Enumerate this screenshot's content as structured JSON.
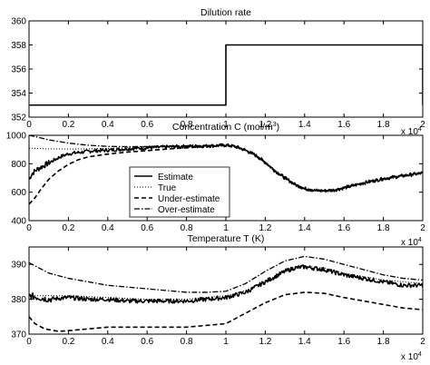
{
  "chart_data": [
    {
      "type": "line",
      "title": "Dilution rate",
      "xlim": [
        0,
        20000
      ],
      "ylim": [
        352,
        360
      ],
      "xticks": [
        0,
        2000,
        4000,
        6000,
        8000,
        10000,
        12000,
        14000,
        16000,
        18000,
        20000
      ],
      "xticklabels": [
        "0",
        "0.2",
        "0.4",
        "0.6",
        "0.8",
        "1",
        "1.2",
        "1.4",
        "1.6",
        "1.8",
        "2"
      ],
      "yticks": [
        352,
        354,
        356,
        358,
        360
      ],
      "yticklabels": [
        "352",
        "354",
        "356",
        "358",
        "360"
      ],
      "x_multiplier": "x 10",
      "x_multiplier_exp": "4",
      "grid": false,
      "series": [
        {
          "style": "solid",
          "x": [
            0,
            10000,
            10000,
            20000,
            20000
          ],
          "y": [
            353,
            353,
            358,
            358,
            353
          ]
        }
      ]
    },
    {
      "type": "line",
      "title": "Concentration C (mol/m",
      "title_sup": "3",
      "title_end": ")",
      "xlim": [
        0,
        20000
      ],
      "ylim": [
        400,
        1000
      ],
      "xticks": [
        0,
        2000,
        4000,
        6000,
        8000,
        10000,
        12000,
        14000,
        16000,
        18000,
        20000
      ],
      "xticklabels": [
        "0",
        "0.2",
        "0.4",
        "0.6",
        "0.8",
        "1",
        "1.2",
        "1.4",
        "1.6",
        "1.8",
        "2"
      ],
      "yticks": [
        400,
        600,
        800,
        1000
      ],
      "yticklabels": [
        "400",
        "600",
        "800",
        "1000"
      ],
      "x_multiplier": "x 10",
      "x_multiplier_exp": "4",
      "grid": false,
      "legend_position": "center-left",
      "series": [
        {
          "name": "Estimate",
          "style": "solid",
          "noise": 12,
          "x": [
            0,
            150,
            400,
            800,
            1200,
            1600,
            2000,
            2600,
            3200,
            4000,
            5000,
            6000,
            7000,
            8000,
            9000,
            10000,
            10500,
            11000,
            11500,
            12000,
            12500,
            13000,
            13500,
            14000,
            14500,
            15000,
            15500,
            16000,
            17000,
            18000,
            19000,
            20000
          ],
          "y": [
            690,
            730,
            760,
            790,
            820,
            850,
            870,
            880,
            890,
            895,
            905,
            912,
            918,
            922,
            925,
            930,
            920,
            895,
            860,
            810,
            750,
            700,
            655,
            625,
            612,
            610,
            615,
            630,
            665,
            695,
            715,
            735
          ]
        },
        {
          "name": "True",
          "style": "dotted",
          "noise": 0,
          "x": [
            0,
            1000,
            2000,
            3000,
            4000,
            5000,
            6000,
            7000,
            8000,
            9000,
            10000,
            10500,
            11000,
            11500,
            12000,
            12500,
            13000,
            13500,
            14000,
            14500,
            15000,
            15500,
            16000,
            17000,
            18000,
            19000,
            20000
          ],
          "y": [
            910,
            905,
            903,
            905,
            908,
            912,
            916,
            920,
            923,
            926,
            930,
            920,
            895,
            860,
            810,
            750,
            700,
            655,
            625,
            612,
            610,
            615,
            630,
            665,
            695,
            715,
            735
          ]
        },
        {
          "name": "Under-estimate",
          "style": "dashed",
          "noise": 0,
          "x": [
            0,
            300,
            600,
            1000,
            1500,
            2000,
            2500,
            3000,
            4000,
            5000,
            6000,
            7000,
            8000,
            9000,
            10000,
            10500,
            11000,
            11500,
            12000,
            12500,
            13000,
            13500,
            14000,
            14500,
            15000,
            15500,
            16000,
            17000,
            18000,
            19000,
            20000
          ],
          "y": [
            515,
            560,
            620,
            690,
            750,
            795,
            828,
            848,
            868,
            882,
            892,
            903,
            912,
            920,
            928,
            918,
            893,
            858,
            808,
            748,
            698,
            653,
            623,
            610,
            608,
            613,
            628,
            663,
            693,
            713,
            733
          ]
        },
        {
          "name": "Over-estimate",
          "style": "dashdot",
          "noise": 0,
          "x": [
            0,
            500,
            1000,
            2000,
            3000,
            4000,
            5000,
            6000,
            7000,
            8000,
            9000,
            10000,
            10500,
            11000,
            11500,
            12000,
            12500,
            13000,
            13500,
            14000,
            14500,
            15000,
            15500,
            16000,
            17000,
            18000,
            19000,
            20000
          ],
          "y": [
            1000,
            985,
            968,
            945,
            930,
            922,
            920,
            921,
            923,
            926,
            928,
            932,
            922,
            897,
            862,
            812,
            752,
            702,
            657,
            627,
            614,
            612,
            617,
            632,
            667,
            697,
            717,
            737
          ]
        }
      ]
    },
    {
      "type": "line",
      "title": "Temperature T (K)",
      "xlim": [
        0,
        20000
      ],
      "ylim": [
        370,
        395
      ],
      "xticks": [
        0,
        2000,
        4000,
        6000,
        8000,
        10000,
        12000,
        14000,
        16000,
        18000,
        20000
      ],
      "xticklabels": [
        "0",
        "0.2",
        "0.4",
        "0.6",
        "0.8",
        "1",
        "1.2",
        "1.4",
        "1.6",
        "1.8",
        "2"
      ],
      "yticks": [
        370,
        380,
        390
      ],
      "yticklabels": [
        "370",
        "380",
        "390"
      ],
      "x_multiplier": "x 10",
      "x_multiplier_exp": "4",
      "grid": false,
      "series": [
        {
          "name": "Estimate",
          "style": "solid",
          "noise": 0.6,
          "x": [
            0,
            1000,
            2000,
            3000,
            4000,
            5000,
            6000,
            7000,
            8000,
            9000,
            10000,
            11000,
            12000,
            13000,
            13500,
            14000,
            15000,
            16000,
            17000,
            18000,
            19000,
            20000
          ],
          "y": [
            381,
            380,
            380.5,
            380,
            380,
            379.5,
            379.5,
            379.5,
            379.5,
            380,
            380.5,
            382,
            385,
            388,
            389,
            389.3,
            388.5,
            387,
            386,
            385,
            384,
            384
          ]
        },
        {
          "name": "True",
          "style": "dotted",
          "noise": 0,
          "x": [
            0,
            2000,
            4000,
            6000,
            8000,
            10000,
            11000,
            12000,
            13000,
            14000,
            15000,
            16000,
            17000,
            18000,
            19000,
            20000
          ],
          "y": [
            381,
            381,
            380.5,
            380,
            380,
            381,
            382.5,
            385,
            388,
            389.5,
            389,
            387.5,
            386.5,
            385.5,
            385,
            384.5
          ]
        },
        {
          "name": "Under-estimate",
          "style": "dashed",
          "noise": 0,
          "x": [
            0,
            300,
            800,
            1500,
            2000,
            3000,
            4000,
            5000,
            6000,
            7000,
            8000,
            9000,
            10000,
            11000,
            12000,
            13000,
            14000,
            15000,
            16000,
            17000,
            18000,
            19000,
            20000
          ],
          "y": [
            375,
            373,
            371.5,
            370.8,
            371,
            371.5,
            372,
            372,
            372,
            372,
            372,
            372.5,
            373,
            376,
            379,
            381.3,
            382,
            381.7,
            380.5,
            379.5,
            378.5,
            377.5,
            377
          ]
        },
        {
          "name": "Over-estimate",
          "style": "dashdot",
          "noise": 0,
          "x": [
            0,
            500,
            1000,
            2000,
            3000,
            4000,
            5000,
            6000,
            7000,
            8000,
            9000,
            10000,
            11000,
            12000,
            13000,
            14000,
            15000,
            16000,
            17000,
            18000,
            19000,
            20000
          ],
          "y": [
            390.5,
            389,
            387.5,
            386,
            385,
            384,
            383.5,
            383,
            382.5,
            382,
            382,
            382.3,
            384.5,
            388,
            391,
            392.3,
            391.5,
            390,
            388.5,
            387,
            386,
            385.5
          ]
        }
      ]
    }
  ]
}
